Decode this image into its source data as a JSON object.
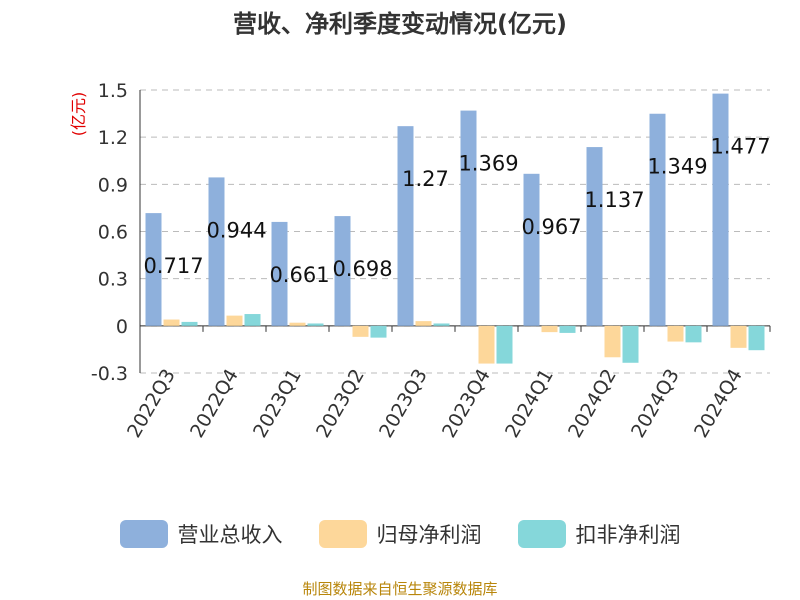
{
  "title": "营收、净利季度变动情况(亿元)",
  "source": "制图数据来自恒生聚源数据库",
  "chart_data": {
    "type": "bar",
    "title": "营收、净利季度变动情况(亿元)",
    "ylabel": "(亿元)",
    "ylabel_color": "#e00000",
    "ylim": [
      -0.3,
      1.5
    ],
    "yticks": [
      -0.3,
      0,
      0.3,
      0.6,
      0.9,
      1.2,
      1.5
    ],
    "ytick_labels": [
      "-0.3",
      "0",
      "0.3",
      "0.6",
      "0.9",
      "1.2",
      "1.5"
    ],
    "grid": true,
    "legend_position": "bottom",
    "categories": [
      "2022Q3",
      "2022Q4",
      "2023Q1",
      "2023Q2",
      "2023Q3",
      "2023Q4",
      "2024Q1",
      "2024Q2",
      "2024Q3",
      "2024Q4"
    ],
    "series": [
      {
        "name": "营业总收入",
        "color": "#8eb0dc",
        "values": [
          0.717,
          0.944,
          0.661,
          0.698,
          1.27,
          1.369,
          0.967,
          1.137,
          1.349,
          1.477
        ]
      },
      {
        "name": "归母净利润",
        "color": "#fdd79a",
        "values": [
          0.04,
          0.065,
          0.02,
          -0.07,
          0.03,
          -0.24,
          -0.04,
          -0.2,
          -0.1,
          -0.14
        ]
      },
      {
        "name": "扣非净利润",
        "color": "#85d7da",
        "values": [
          0.025,
          0.075,
          0.015,
          -0.075,
          0.015,
          -0.24,
          -0.045,
          -0.235,
          -0.105,
          -0.155
        ]
      }
    ],
    "data_labels": [
      "0.717",
      "0.944",
      "0.661",
      "0.698",
      "1.27",
      "1.369",
      "0.967",
      "1.137",
      "1.349",
      "1.477"
    ]
  }
}
